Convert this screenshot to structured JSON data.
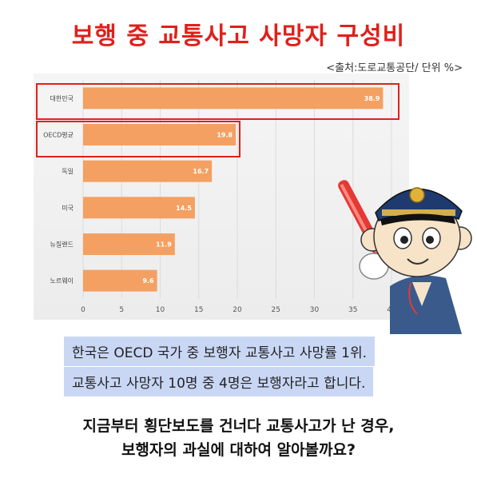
{
  "title": "보행 중 교통사고 사망자 구성비",
  "source_note": "<출처:도로교통공단/ 단위 %>",
  "captions": [
    "한국은 OECD 국가 중 보행자 교통사고 사망률 1위.",
    "교통사고 사망자 10명 중 4명은 보행자라고 합니다."
  ],
  "closing": [
    "지금부터 횡단보도를 건너다 교통사고가 난 경우,",
    "보행자의 과실에 대하여 알아볼까요?"
  ],
  "colors": {
    "title": "#e0201b",
    "bar": "#f4a062",
    "highlight": "#e0201b",
    "caption_bg": "#c9d7f5"
  },
  "chart_data": {
    "type": "bar",
    "orientation": "horizontal",
    "categories": [
      "대한민국",
      "OECD평균",
      "독일",
      "미국",
      "뉴질랜드",
      "노르웨이"
    ],
    "values": [
      38.9,
      19.8,
      16.7,
      14.5,
      11.9,
      9.6
    ],
    "value_labels": [
      "38.9",
      "19.8",
      "16.7",
      "14.5",
      "11.9",
      "9.6"
    ],
    "xlim": [
      0,
      40
    ],
    "xticks": [
      "0",
      "5",
      "10",
      "15",
      "20",
      "25",
      "30",
      "35",
      "40"
    ],
    "highlighted": [
      "대한민국",
      "OECD평균"
    ],
    "grid": true
  }
}
